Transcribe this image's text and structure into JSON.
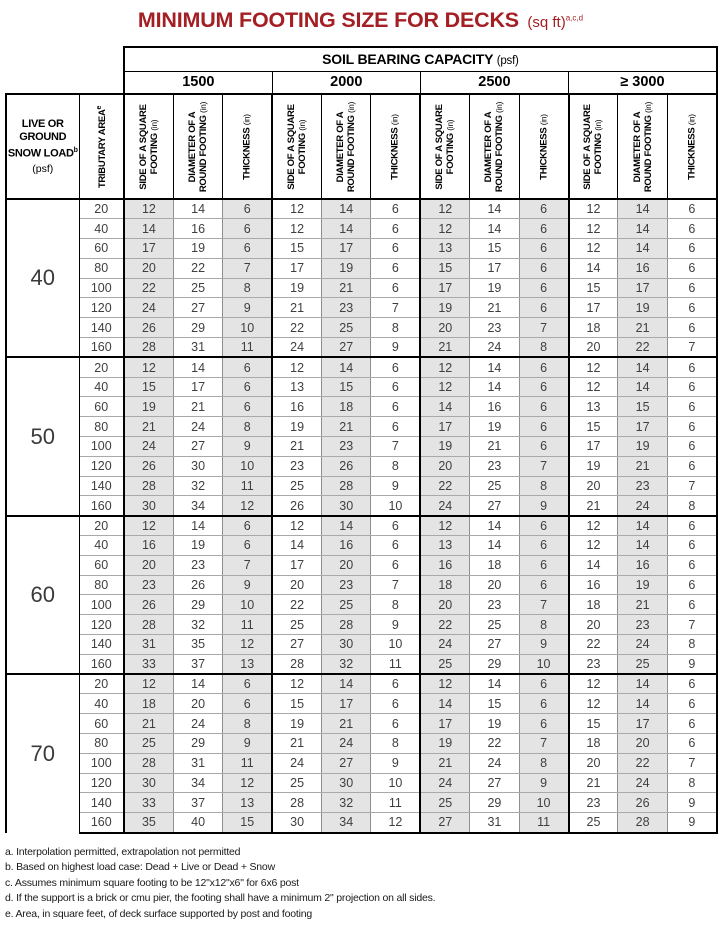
{
  "title": {
    "text": "MINIMUM FOOTING SIZE FOR DECKS",
    "unit": "(sq ft)",
    "superscript": "a,c,d",
    "color": "#A41F23"
  },
  "table": {
    "soil_header": "SOIL BEARING CAPACITY",
    "soil_unit": "(psf)",
    "capacities": [
      "1500",
      "2000",
      "2500",
      "≥ 3000"
    ],
    "left_header": {
      "line1": "LIVE OR",
      "line2": "GROUND",
      "line3": "SNOW LOAD",
      "sup": "b",
      "unit": "(psf)"
    },
    "tributary_header": {
      "text": "TRIBUTARY AREA",
      "sup": "e"
    },
    "col_headers": [
      {
        "key": "square-footing-side",
        "lines": [
          "SIDE OF A SQUARE",
          "FOOTING"
        ],
        "unit": "(in)"
      },
      {
        "key": "round-footing-diameter",
        "lines": [
          "DIAMETER OF A",
          "ROUND FOOTING"
        ],
        "unit": "(in)"
      },
      {
        "key": "thickness",
        "lines": [
          "THICKNESS"
        ],
        "unit": "(in)"
      }
    ],
    "shade_color": "#E4E4E4",
    "groups": [
      {
        "load": "40",
        "rows": [
          {
            "area": "20",
            "values": [
              12,
              14,
              6,
              12,
              14,
              6,
              12,
              14,
              6,
              12,
              14,
              6
            ]
          },
          {
            "area": "40",
            "values": [
              14,
              16,
              6,
              12,
              14,
              6,
              12,
              14,
              6,
              12,
              14,
              6
            ]
          },
          {
            "area": "60",
            "values": [
              17,
              19,
              6,
              15,
              17,
              6,
              13,
              15,
              6,
              12,
              14,
              6
            ]
          },
          {
            "area": "80",
            "values": [
              20,
              22,
              7,
              17,
              19,
              6,
              15,
              17,
              6,
              14,
              16,
              6
            ]
          },
          {
            "area": "100",
            "values": [
              22,
              25,
              8,
              19,
              21,
              6,
              17,
              19,
              6,
              15,
              17,
              6
            ]
          },
          {
            "area": "120",
            "values": [
              24,
              27,
              9,
              21,
              23,
              7,
              19,
              21,
              6,
              17,
              19,
              6
            ]
          },
          {
            "area": "140",
            "values": [
              26,
              29,
              10,
              22,
              25,
              8,
              20,
              23,
              7,
              18,
              21,
              6
            ]
          },
          {
            "area": "160",
            "values": [
              28,
              31,
              11,
              24,
              27,
              9,
              21,
              24,
              8,
              20,
              22,
              7
            ]
          }
        ]
      },
      {
        "load": "50",
        "rows": [
          {
            "area": "20",
            "values": [
              12,
              14,
              6,
              12,
              14,
              6,
              12,
              14,
              6,
              12,
              14,
              6
            ]
          },
          {
            "area": "40",
            "values": [
              15,
              17,
              6,
              13,
              15,
              6,
              12,
              14,
              6,
              12,
              14,
              6
            ]
          },
          {
            "area": "60",
            "values": [
              19,
              21,
              6,
              16,
              18,
              6,
              14,
              16,
              6,
              13,
              15,
              6
            ]
          },
          {
            "area": "80",
            "values": [
              21,
              24,
              8,
              19,
              21,
              6,
              17,
              19,
              6,
              15,
              17,
              6
            ]
          },
          {
            "area": "100",
            "values": [
              24,
              27,
              9,
              21,
              23,
              7,
              19,
              21,
              6,
              17,
              19,
              6
            ]
          },
          {
            "area": "120",
            "values": [
              26,
              30,
              10,
              23,
              26,
              8,
              20,
              23,
              7,
              19,
              21,
              6
            ]
          },
          {
            "area": "140",
            "values": [
              28,
              32,
              11,
              25,
              28,
              9,
              22,
              25,
              8,
              20,
              23,
              7
            ]
          },
          {
            "area": "160",
            "values": [
              30,
              34,
              12,
              26,
              30,
              10,
              24,
              27,
              9,
              21,
              24,
              8
            ]
          }
        ]
      },
      {
        "load": "60",
        "rows": [
          {
            "area": "20",
            "values": [
              12,
              14,
              6,
              12,
              14,
              6,
              12,
              14,
              6,
              12,
              14,
              6
            ]
          },
          {
            "area": "40",
            "values": [
              16,
              19,
              6,
              14,
              16,
              6,
              13,
              14,
              6,
              12,
              14,
              6
            ]
          },
          {
            "area": "60",
            "values": [
              20,
              23,
              7,
              17,
              20,
              6,
              16,
              18,
              6,
              14,
              16,
              6
            ]
          },
          {
            "area": "80",
            "values": [
              23,
              26,
              9,
              20,
              23,
              7,
              18,
              20,
              6,
              16,
              19,
              6
            ]
          },
          {
            "area": "100",
            "values": [
              26,
              29,
              10,
              22,
              25,
              8,
              20,
              23,
              7,
              18,
              21,
              6
            ]
          },
          {
            "area": "120",
            "values": [
              28,
              32,
              11,
              25,
              28,
              9,
              22,
              25,
              8,
              20,
              23,
              7
            ]
          },
          {
            "area": "140",
            "values": [
              31,
              35,
              12,
              27,
              30,
              10,
              24,
              27,
              9,
              22,
              24,
              8
            ]
          },
          {
            "area": "160",
            "values": [
              33,
              37,
              13,
              28,
              32,
              11,
              25,
              29,
              10,
              23,
              25,
              9
            ]
          }
        ]
      },
      {
        "load": "70",
        "rows": [
          {
            "area": "20",
            "values": [
              12,
              14,
              6,
              12,
              14,
              6,
              12,
              14,
              6,
              12,
              14,
              6
            ]
          },
          {
            "area": "40",
            "values": [
              18,
              20,
              6,
              15,
              17,
              6,
              14,
              15,
              6,
              12,
              14,
              6
            ]
          },
          {
            "area": "60",
            "values": [
              21,
              24,
              8,
              19,
              21,
              6,
              17,
              19,
              6,
              15,
              17,
              6
            ]
          },
          {
            "area": "80",
            "values": [
              25,
              29,
              9,
              21,
              24,
              8,
              19,
              22,
              7,
              18,
              20,
              6
            ]
          },
          {
            "area": "100",
            "values": [
              28,
              31,
              11,
              24,
              27,
              9,
              21,
              24,
              8,
              20,
              22,
              7
            ]
          },
          {
            "area": "120",
            "values": [
              30,
              34,
              12,
              25,
              30,
              10,
              24,
              27,
              9,
              21,
              24,
              8
            ]
          },
          {
            "area": "140",
            "values": [
              33,
              37,
              13,
              28,
              32,
              11,
              25,
              29,
              10,
              23,
              26,
              9
            ]
          },
          {
            "area": "160",
            "values": [
              35,
              40,
              15,
              30,
              34,
              12,
              27,
              31,
              11,
              25,
              28,
              9
            ]
          }
        ]
      }
    ]
  },
  "footnotes": [
    "a. Interpolation permitted, extrapolation not permitted",
    "b. Based on highest load case: Dead + Live or Dead + Snow",
    "c. Assumes minimum square footing to be 12\"x12\"x6\" for 6x6 post",
    "d. If the support is a brick or cmu pier, the footing shall have a minimum 2\" projection on all sides.",
    "e. Area, in square feet, of deck surface supported by post and footing"
  ]
}
